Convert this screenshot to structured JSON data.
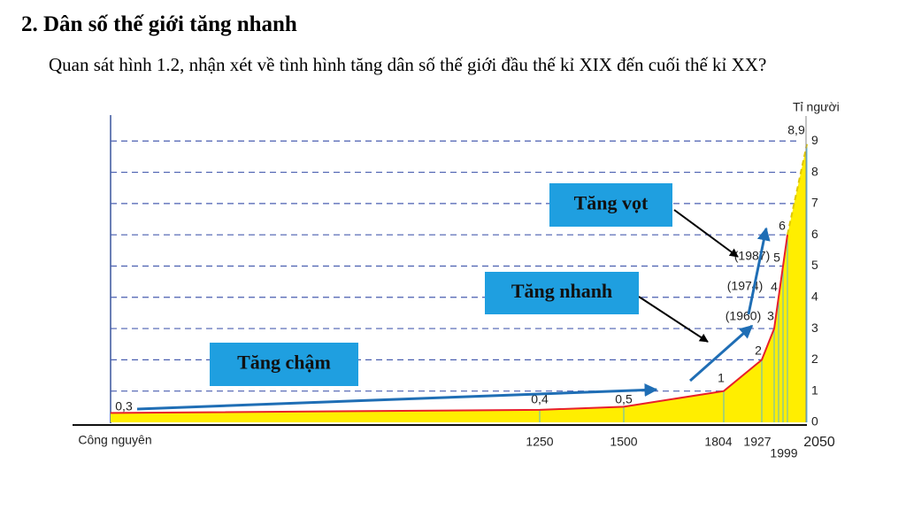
{
  "header": {
    "title": "2. Dân số thế giới tăng nhanh",
    "question": "Quan sát hình 1.2, nhận xét về tình hình tăng dân số thế giới đầu thế kỉ XIX đến cuối thế kỉ XX?"
  },
  "chart_data": {
    "type": "area",
    "y_label": "Tỉ người",
    "categories": [
      "Công nguyên",
      "1250",
      "1500",
      "1804",
      "1927",
      null,
      null,
      null,
      "1999",
      "2050"
    ],
    "point_notes": [
      null,
      null,
      null,
      null,
      null,
      "(1960)",
      "(1974)",
      "(1987)",
      null,
      null
    ],
    "values": [
      0.3,
      0.4,
      0.5,
      1,
      2,
      3,
      4,
      5,
      6,
      8.9
    ],
    "value_labels": [
      "0,3",
      "0,4",
      "0,5",
      "1",
      "2",
      "3",
      "4",
      "5",
      "6",
      "8,9"
    ],
    "ylim": [
      0,
      9.8
    ],
    "yticks": [
      0,
      1,
      2,
      3,
      4,
      5,
      6,
      7,
      8,
      9
    ],
    "grid": true,
    "fill_color": "#ffee00",
    "line_color": "#e8202a",
    "annotations": [
      "Tăng chậm",
      "Tăng nhanh",
      "Tăng vọt"
    ]
  }
}
